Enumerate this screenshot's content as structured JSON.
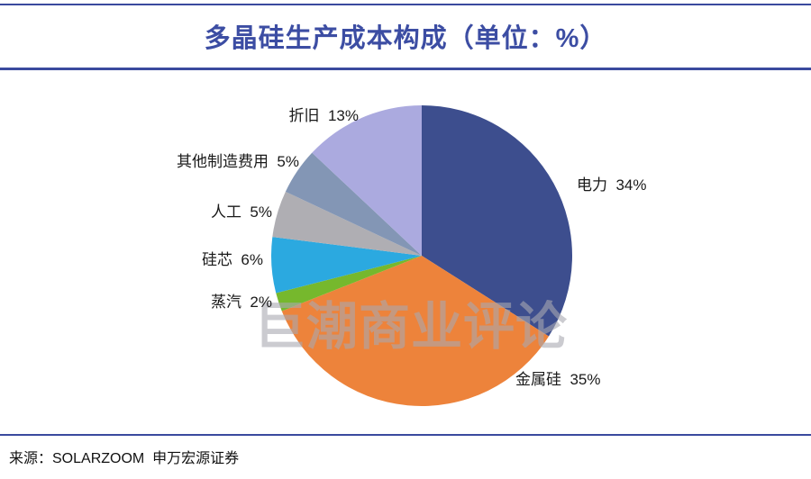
{
  "title": "多晶硅生产成本构成（单位：%）",
  "watermark": "巨潮商业评论",
  "source": "来源：SOLARZOOM  申万宏源证券",
  "colors": {
    "rule_blue": "#3A4A9E",
    "title_blue": "#3C4DA3",
    "label_text": "#1A1A1A",
    "watermark_gray": "rgba(168,168,176,0.6)"
  },
  "chart_data": {
    "type": "pie",
    "title": "多晶硅生产成本构成（单位：%）",
    "unit": "%",
    "value_suffix": "%",
    "start_angle_deg": 0,
    "direction": "clockwise",
    "legend_position": "none",
    "segments": [
      {
        "label": "电力",
        "value": 34,
        "color": "#3D4E8E"
      },
      {
        "label": "金属硅",
        "value": 35,
        "color": "#ED833B"
      },
      {
        "label": "蒸汽",
        "value": 2,
        "color": "#76B82D"
      },
      {
        "label": "硅芯",
        "value": 6,
        "color": "#2BA9E0"
      },
      {
        "label": "人工",
        "value": 5,
        "color": "#AFAEB3"
      },
      {
        "label": "其他制造费用",
        "value": 5,
        "color": "#8396B5"
      },
      {
        "label": "折旧",
        "value": 13,
        "color": "#ABAADF"
      }
    ]
  }
}
